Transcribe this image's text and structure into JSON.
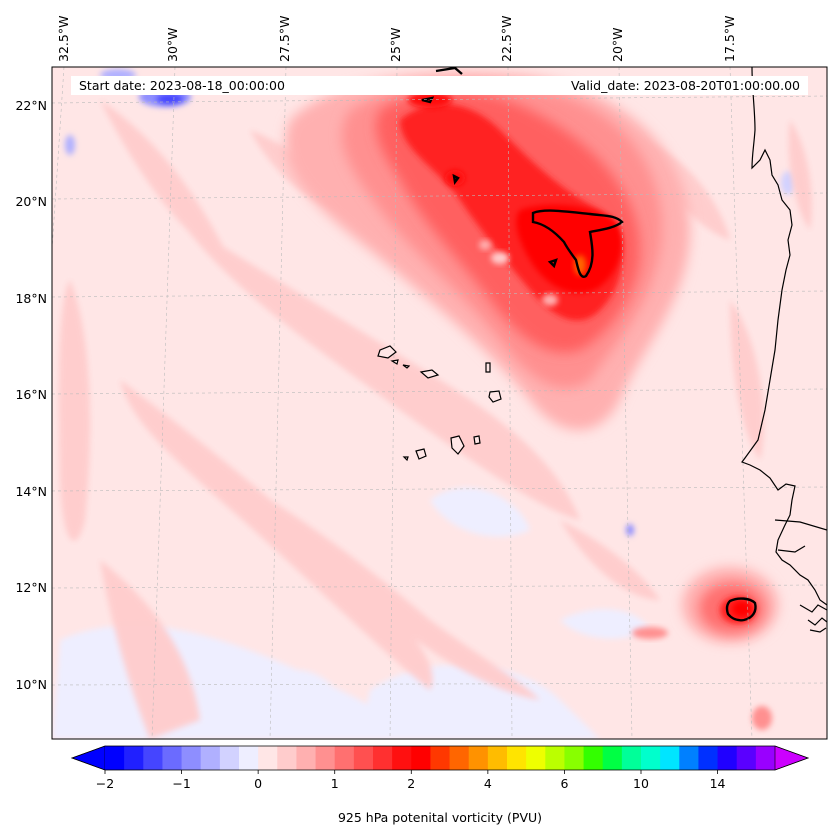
{
  "chart_data": {
    "type": "map",
    "annotations": {
      "start_date": "Start date: 2023-08-18_00:00:00",
      "valid_date": "Valid_date: 2023-08-20T01:00:00.00"
    },
    "longitude_labels": [
      "32.5°W",
      "30°W",
      "27.5°W",
      "25°W",
      "22.5°W",
      "20°W",
      "17.5°W"
    ],
    "latitude_labels": [
      "22°N",
      "20°N",
      "18°N",
      "16°N",
      "14°N",
      "12°N",
      "10°N"
    ],
    "colorbar": {
      "label": "925 hPa potenital vorticity (PVU)",
      "ticks": [
        "−2",
        "−1",
        "0",
        "1",
        "2",
        "4",
        "6",
        "10",
        "14"
      ],
      "colors": [
        "#0000ff",
        "#2020ff",
        "#4545ff",
        "#6b6bff",
        "#8e8eff",
        "#b0b0ff",
        "#d2d2ff",
        "#eeeeff",
        "#ffe6e6",
        "#ffcccc",
        "#ffb0b0",
        "#ff9090",
        "#ff7070",
        "#ff5050",
        "#ff3030",
        "#ff1010",
        "#ff0000",
        "#ff3800",
        "#ff6600",
        "#ff9200",
        "#ffbc00",
        "#ffe400",
        "#eeff00",
        "#bbff00",
        "#88ff00",
        "#33ff00",
        "#00ff44",
        "#00ff99",
        "#00ffcc",
        "#00e5ff",
        "#0080ff",
        "#0030ff",
        "#2000ff",
        "#5a00ff",
        "#9900ff"
      ],
      "under_color": "#0000ff",
      "over_color": "#cc00ff"
    },
    "colors": {
      "background_field": "#ffe6e6",
      "coast": "#000000"
    }
  }
}
